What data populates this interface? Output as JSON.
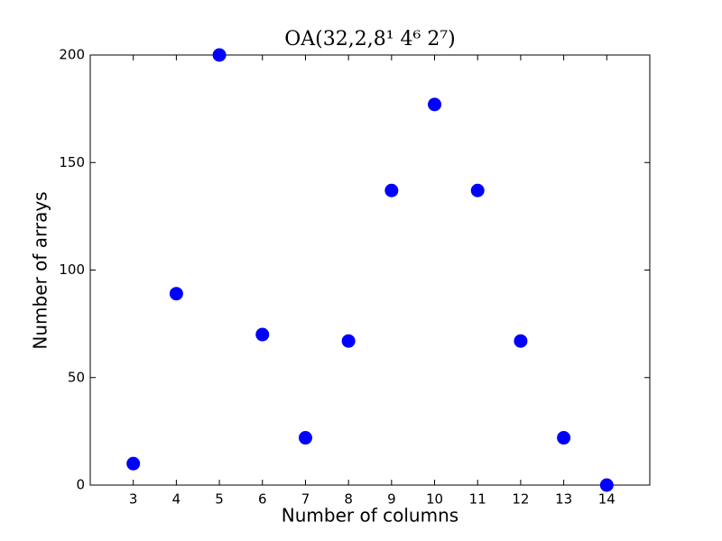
{
  "chart_data": {
    "type": "scatter",
    "title": "OA(32,2,8¹ 4⁶ 2⁷)",
    "x_label": "Number of columns",
    "y_label": "Number of arrays",
    "x": [
      3,
      4,
      5,
      6,
      7,
      8,
      9,
      10,
      11,
      12,
      13,
      14
    ],
    "values": [
      10,
      89,
      200,
      70,
      22,
      67,
      137,
      177,
      137,
      67,
      22,
      0
    ],
    "color": "#0000ff",
    "xlim": [
      2,
      15
    ],
    "ylim": [
      0,
      200
    ],
    "xticks": [
      3,
      4,
      5,
      6,
      7,
      8,
      9,
      10,
      11,
      12,
      13,
      14
    ],
    "yticks": [
      0,
      50,
      100,
      150,
      200
    ],
    "grid": false
  }
}
